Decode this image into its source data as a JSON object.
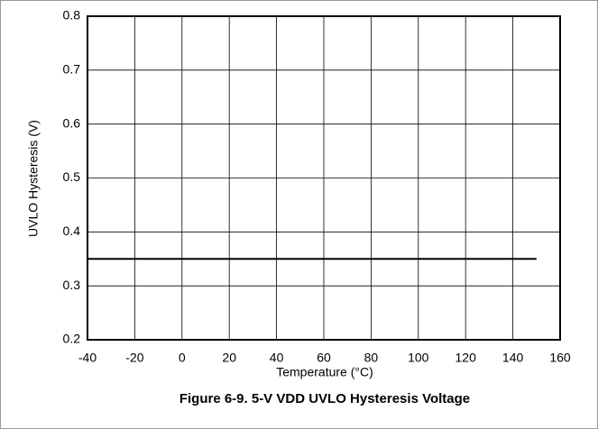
{
  "chart_data": {
    "type": "line",
    "title": "Figure 6-9. 5-V VDD UVLO Hysteresis Voltage",
    "x_label": "Temperature (°C)",
    "y_label": "UVLO Hysteresis (V)",
    "x": [
      -40,
      150
    ],
    "series": [
      {
        "color": "#000000",
        "values": [
          0.35,
          0.35
        ]
      }
    ],
    "xlim": [
      -40,
      160
    ],
    "xticks": [
      -40,
      -20,
      0,
      20,
      40,
      60,
      80,
      100,
      120,
      140,
      160
    ],
    "ylim": [
      0.2,
      0.8
    ],
    "yticks": [
      0.2,
      0.3,
      0.4,
      0.5,
      0.6,
      0.7,
      0.8
    ],
    "grid": true
  }
}
